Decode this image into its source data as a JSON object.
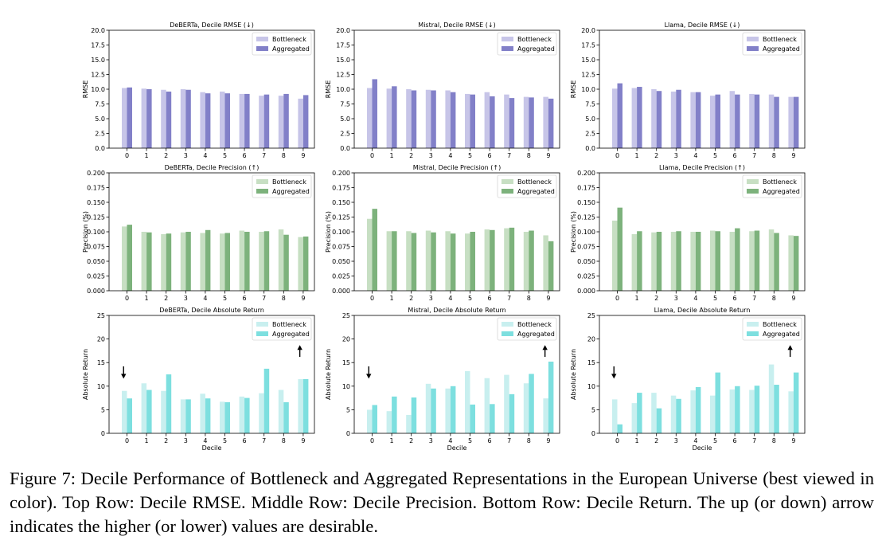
{
  "colors": {
    "rmse_bottleneck": "#c7c5e8",
    "rmse_aggregated": "#8280c8",
    "prec_bottleneck": "#c7dfc3",
    "prec_aggregated": "#7db27c",
    "ret_bottleneck": "#c8efef",
    "ret_aggregated": "#7ddfdf"
  },
  "chart_data": [
    {
      "type": "bar",
      "title": "DeBERTa, Decile RMSE (↓)",
      "xlabel": "",
      "ylabel": "RMSE",
      "categories": [
        "0",
        "1",
        "2",
        "3",
        "4",
        "5",
        "6",
        "7",
        "8",
        "9"
      ],
      "ylim": [
        0,
        20
      ],
      "yticks": [
        "0.0",
        "2.5",
        "5.0",
        "7.5",
        "10.0",
        "12.5",
        "15.0",
        "17.5",
        "20.0"
      ],
      "legend": "top-right",
      "arrow": "",
      "series": [
        {
          "name": "Bottleneck",
          "values": [
            10.2,
            10.1,
            9.9,
            10.0,
            9.5,
            9.6,
            9.2,
            8.9,
            8.9,
            8.4
          ]
        },
        {
          "name": "Aggregated",
          "values": [
            10.3,
            10.0,
            9.6,
            9.9,
            9.3,
            9.3,
            9.2,
            9.1,
            9.2,
            9.0
          ]
        }
      ]
    },
    {
      "type": "bar",
      "title": "Mistral, Decile RMSE (↓)",
      "xlabel": "",
      "ylabel": "RMSE",
      "categories": [
        "0",
        "1",
        "2",
        "3",
        "4",
        "5",
        "6",
        "7",
        "8",
        "9"
      ],
      "ylim": [
        0,
        20
      ],
      "yticks": [
        "0.0",
        "2.5",
        "5.0",
        "7.5",
        "10.0",
        "12.5",
        "15.0",
        "17.5",
        "20.0"
      ],
      "legend": "top-right",
      "arrow": "",
      "series": [
        {
          "name": "Bottleneck",
          "values": [
            10.2,
            10.1,
            10.0,
            9.9,
            9.8,
            9.2,
            9.5,
            9.1,
            8.7,
            8.7
          ]
        },
        {
          "name": "Aggregated",
          "values": [
            11.7,
            10.5,
            9.8,
            9.8,
            9.5,
            9.1,
            8.8,
            8.5,
            8.6,
            8.4
          ]
        }
      ]
    },
    {
      "type": "bar",
      "title": "Llama, Decile RMSE (↓)",
      "xlabel": "",
      "ylabel": "RMSE",
      "categories": [
        "0",
        "1",
        "2",
        "3",
        "4",
        "5",
        "6",
        "7",
        "8",
        "9"
      ],
      "ylim": [
        0,
        20
      ],
      "yticks": [
        "0.0",
        "2.5",
        "5.0",
        "7.5",
        "10.0",
        "12.5",
        "15.0",
        "17.5",
        "20.0"
      ],
      "legend": "top-right",
      "arrow": "",
      "series": [
        {
          "name": "Bottleneck",
          "values": [
            10.1,
            10.2,
            10.0,
            9.6,
            9.5,
            8.9,
            9.7,
            9.2,
            9.1,
            8.7
          ]
        },
        {
          "name": "Aggregated",
          "values": [
            11.0,
            10.4,
            9.7,
            9.9,
            9.5,
            9.1,
            9.1,
            9.1,
            8.7,
            8.7
          ]
        }
      ]
    },
    {
      "type": "bar",
      "title": "DeBERTa, Decile Precision (↑)",
      "xlabel": "",
      "ylabel": "Precision (%)",
      "categories": [
        "0",
        "1",
        "2",
        "3",
        "4",
        "5",
        "6",
        "7",
        "8",
        "9"
      ],
      "ylim": [
        0,
        0.2
      ],
      "yticks": [
        "0.000",
        "0.025",
        "0.050",
        "0.075",
        "0.100",
        "0.125",
        "0.150",
        "0.175",
        "0.200"
      ],
      "legend": "top-right",
      "arrow": "",
      "series": [
        {
          "name": "Bottleneck",
          "values": [
            0.109,
            0.1,
            0.096,
            0.099,
            0.098,
            0.097,
            0.102,
            0.1,
            0.104,
            0.091
          ]
        },
        {
          "name": "Aggregated",
          "values": [
            0.112,
            0.099,
            0.097,
            0.1,
            0.103,
            0.098,
            0.1,
            0.101,
            0.095,
            0.092
          ]
        }
      ]
    },
    {
      "type": "bar",
      "title": "Mistral, Decile Precision (↑)",
      "xlabel": "",
      "ylabel": "Precision (%)",
      "categories": [
        "0",
        "1",
        "2",
        "3",
        "4",
        "5",
        "6",
        "7",
        "8",
        "9"
      ],
      "ylim": [
        0,
        0.2
      ],
      "yticks": [
        "0.000",
        "0.025",
        "0.050",
        "0.075",
        "0.100",
        "0.125",
        "0.150",
        "0.175",
        "0.200"
      ],
      "legend": "top-right",
      "arrow": "",
      "series": [
        {
          "name": "Bottleneck",
          "values": [
            0.122,
            0.101,
            0.101,
            0.102,
            0.101,
            0.097,
            0.104,
            0.106,
            0.1,
            0.094
          ]
        },
        {
          "name": "Aggregated",
          "values": [
            0.139,
            0.101,
            0.098,
            0.099,
            0.097,
            0.1,
            0.103,
            0.107,
            0.102,
            0.084
          ]
        }
      ]
    },
    {
      "type": "bar",
      "title": "Llama, Decile Precision (↑)",
      "xlabel": "",
      "ylabel": "Precision (%)",
      "categories": [
        "0",
        "1",
        "2",
        "3",
        "4",
        "5",
        "6",
        "7",
        "8",
        "9"
      ],
      "ylim": [
        0,
        0.2
      ],
      "yticks": [
        "0.000",
        "0.025",
        "0.050",
        "0.075",
        "0.100",
        "0.125",
        "0.150",
        "0.175",
        "0.200"
      ],
      "legend": "top-right",
      "arrow": "",
      "series": [
        {
          "name": "Bottleneck",
          "values": [
            0.119,
            0.096,
            0.099,
            0.1,
            0.1,
            0.102,
            0.1,
            0.101,
            0.104,
            0.094
          ]
        },
        {
          "name": "Aggregated",
          "values": [
            0.141,
            0.101,
            0.1,
            0.101,
            0.1,
            0.101,
            0.106,
            0.102,
            0.098,
            0.093
          ]
        }
      ]
    },
    {
      "type": "bar",
      "title": "DeBERTa, Decile Absolute Return",
      "xlabel": "Decile",
      "ylabel": "Absolute Return",
      "categories": [
        "0",
        "1",
        "2",
        "3",
        "4",
        "5",
        "6",
        "7",
        "8",
        "9"
      ],
      "ylim": [
        0,
        25
      ],
      "yticks": [
        "0",
        "5",
        "10",
        "15",
        "20",
        "25"
      ],
      "legend": "top-right",
      "arrow": "updown",
      "series": [
        {
          "name": "Bottleneck",
          "values": [
            9.0,
            10.6,
            9.0,
            7.2,
            8.4,
            6.7,
            7.8,
            8.5,
            9.2,
            11.5
          ]
        },
        {
          "name": "Aggregated",
          "values": [
            7.4,
            9.2,
            12.5,
            7.2,
            7.4,
            6.6,
            7.5,
            13.7,
            6.6,
            11.5
          ]
        }
      ]
    },
    {
      "type": "bar",
      "title": "Mistral, Decile Absolute Return",
      "xlabel": "Decile",
      "ylabel": "Absolute Return",
      "categories": [
        "0",
        "1",
        "2",
        "3",
        "4",
        "5",
        "6",
        "7",
        "8",
        "9"
      ],
      "ylim": [
        0,
        25
      ],
      "yticks": [
        "0",
        "5",
        "10",
        "15",
        "20",
        "25"
      ],
      "legend": "top-right",
      "arrow": "updown",
      "series": [
        {
          "name": "Bottleneck",
          "values": [
            5.0,
            4.7,
            3.9,
            10.5,
            9.5,
            13.2,
            11.7,
            12.4,
            10.6,
            7.4
          ]
        },
        {
          "name": "Aggregated",
          "values": [
            6.0,
            7.8,
            7.6,
            9.5,
            10.0,
            6.1,
            6.2,
            8.3,
            12.6,
            15.2
          ]
        }
      ]
    },
    {
      "type": "bar",
      "title": "Llama, Decile Absolute Return",
      "xlabel": "Decile",
      "ylabel": "Absolute Return",
      "categories": [
        "0",
        "1",
        "2",
        "3",
        "4",
        "5",
        "6",
        "7",
        "8",
        "9"
      ],
      "ylim": [
        0,
        25
      ],
      "yticks": [
        "0",
        "5",
        "10",
        "15",
        "20",
        "25"
      ],
      "legend": "top-right",
      "arrow": "updown",
      "series": [
        {
          "name": "Bottleneck",
          "values": [
            7.2,
            6.4,
            8.6,
            8.0,
            9.1,
            8.0,
            9.3,
            9.2,
            14.6,
            8.9
          ]
        },
        {
          "name": "Aggregated",
          "values": [
            1.9,
            8.6,
            5.3,
            7.3,
            9.8,
            12.9,
            10.0,
            10.1,
            10.3,
            12.9
          ]
        }
      ]
    }
  ],
  "caption": "Figure 7: Decile Performance of Bottleneck and Aggregated Representations in the European Universe (best viewed in color). Top Row: Decile RMSE. Middle Row: Decile Precision. Bottom Row: Decile Return. The up (or down) arrow indicates the higher (or lower) values are desirable."
}
